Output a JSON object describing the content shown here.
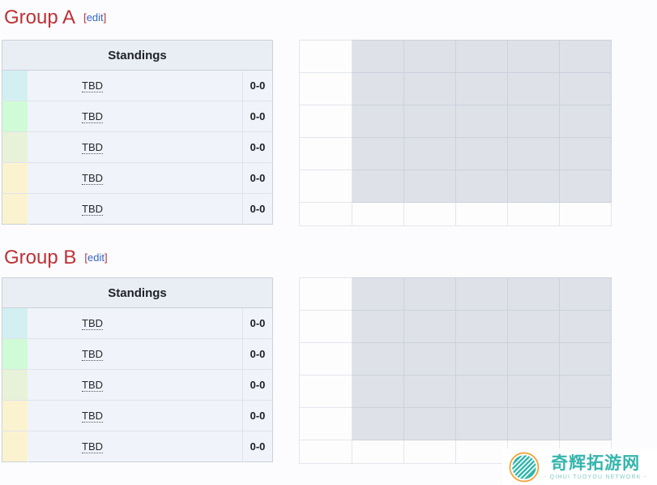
{
  "page": {
    "background_color": "#fcfcfe"
  },
  "colors": {
    "heading_red": "#bf3036",
    "edit_bracket_red": "#b5303c",
    "edit_link_blue": "#3366cc",
    "standings_header_bg": "#e9edf4",
    "standings_row_bg": "#f0f3f9",
    "crosstable_cell_bg": "#dee1e8",
    "status_cyan": "#d2f0f2",
    "status_green": "#cffcd6",
    "status_yellowgreen": "#e8f2d8",
    "status_yellow": "#fbf3cf"
  },
  "groups": [
    {
      "heading": "Group A",
      "edit_link": {
        "open_bracket": "[",
        "label": "edit",
        "close_bracket": "]"
      },
      "standings": {
        "header": "Standings",
        "rows": [
          {
            "team": "TBD",
            "record": "0-0",
            "status_color": "#d2f0f2"
          },
          {
            "team": "TBD",
            "record": "0-0",
            "status_color": "#cffcd6"
          },
          {
            "team": "TBD",
            "record": "0-0",
            "status_color": "#e8f2d8"
          },
          {
            "team": "TBD",
            "record": "0-0",
            "status_color": "#fbf3cf"
          },
          {
            "team": "TBD",
            "record": "0-0",
            "status_color": "#fbf3cf"
          }
        ]
      },
      "crosstable": {
        "team_rows": 5,
        "result_columns": 5,
        "cell_color": "#dee1e8",
        "cells_empty": true
      }
    },
    {
      "heading": "Group B",
      "edit_link": {
        "open_bracket": "[",
        "label": "edit",
        "close_bracket": "]"
      },
      "standings": {
        "header": "Standings",
        "rows": [
          {
            "team": "TBD",
            "record": "0-0",
            "status_color": "#d2f0f2"
          },
          {
            "team": "TBD",
            "record": "0-0",
            "status_color": "#cffcd6"
          },
          {
            "team": "TBD",
            "record": "0-0",
            "status_color": "#e8f2d8"
          },
          {
            "team": "TBD",
            "record": "0-0",
            "status_color": "#fbf3cf"
          },
          {
            "team": "TBD",
            "record": "0-0",
            "status_color": "#fbf3cf"
          }
        ]
      },
      "crosstable": {
        "team_rows": 5,
        "result_columns": 5,
        "cell_color": "#dee1e8",
        "cells_empty": true
      }
    }
  ],
  "watermark": {
    "title": "奇辉拓游网",
    "subtitle": "- QIHUI TUOYOU NETWORK -",
    "teal": "#2fb6ac",
    "orange": "#f59e2d"
  }
}
